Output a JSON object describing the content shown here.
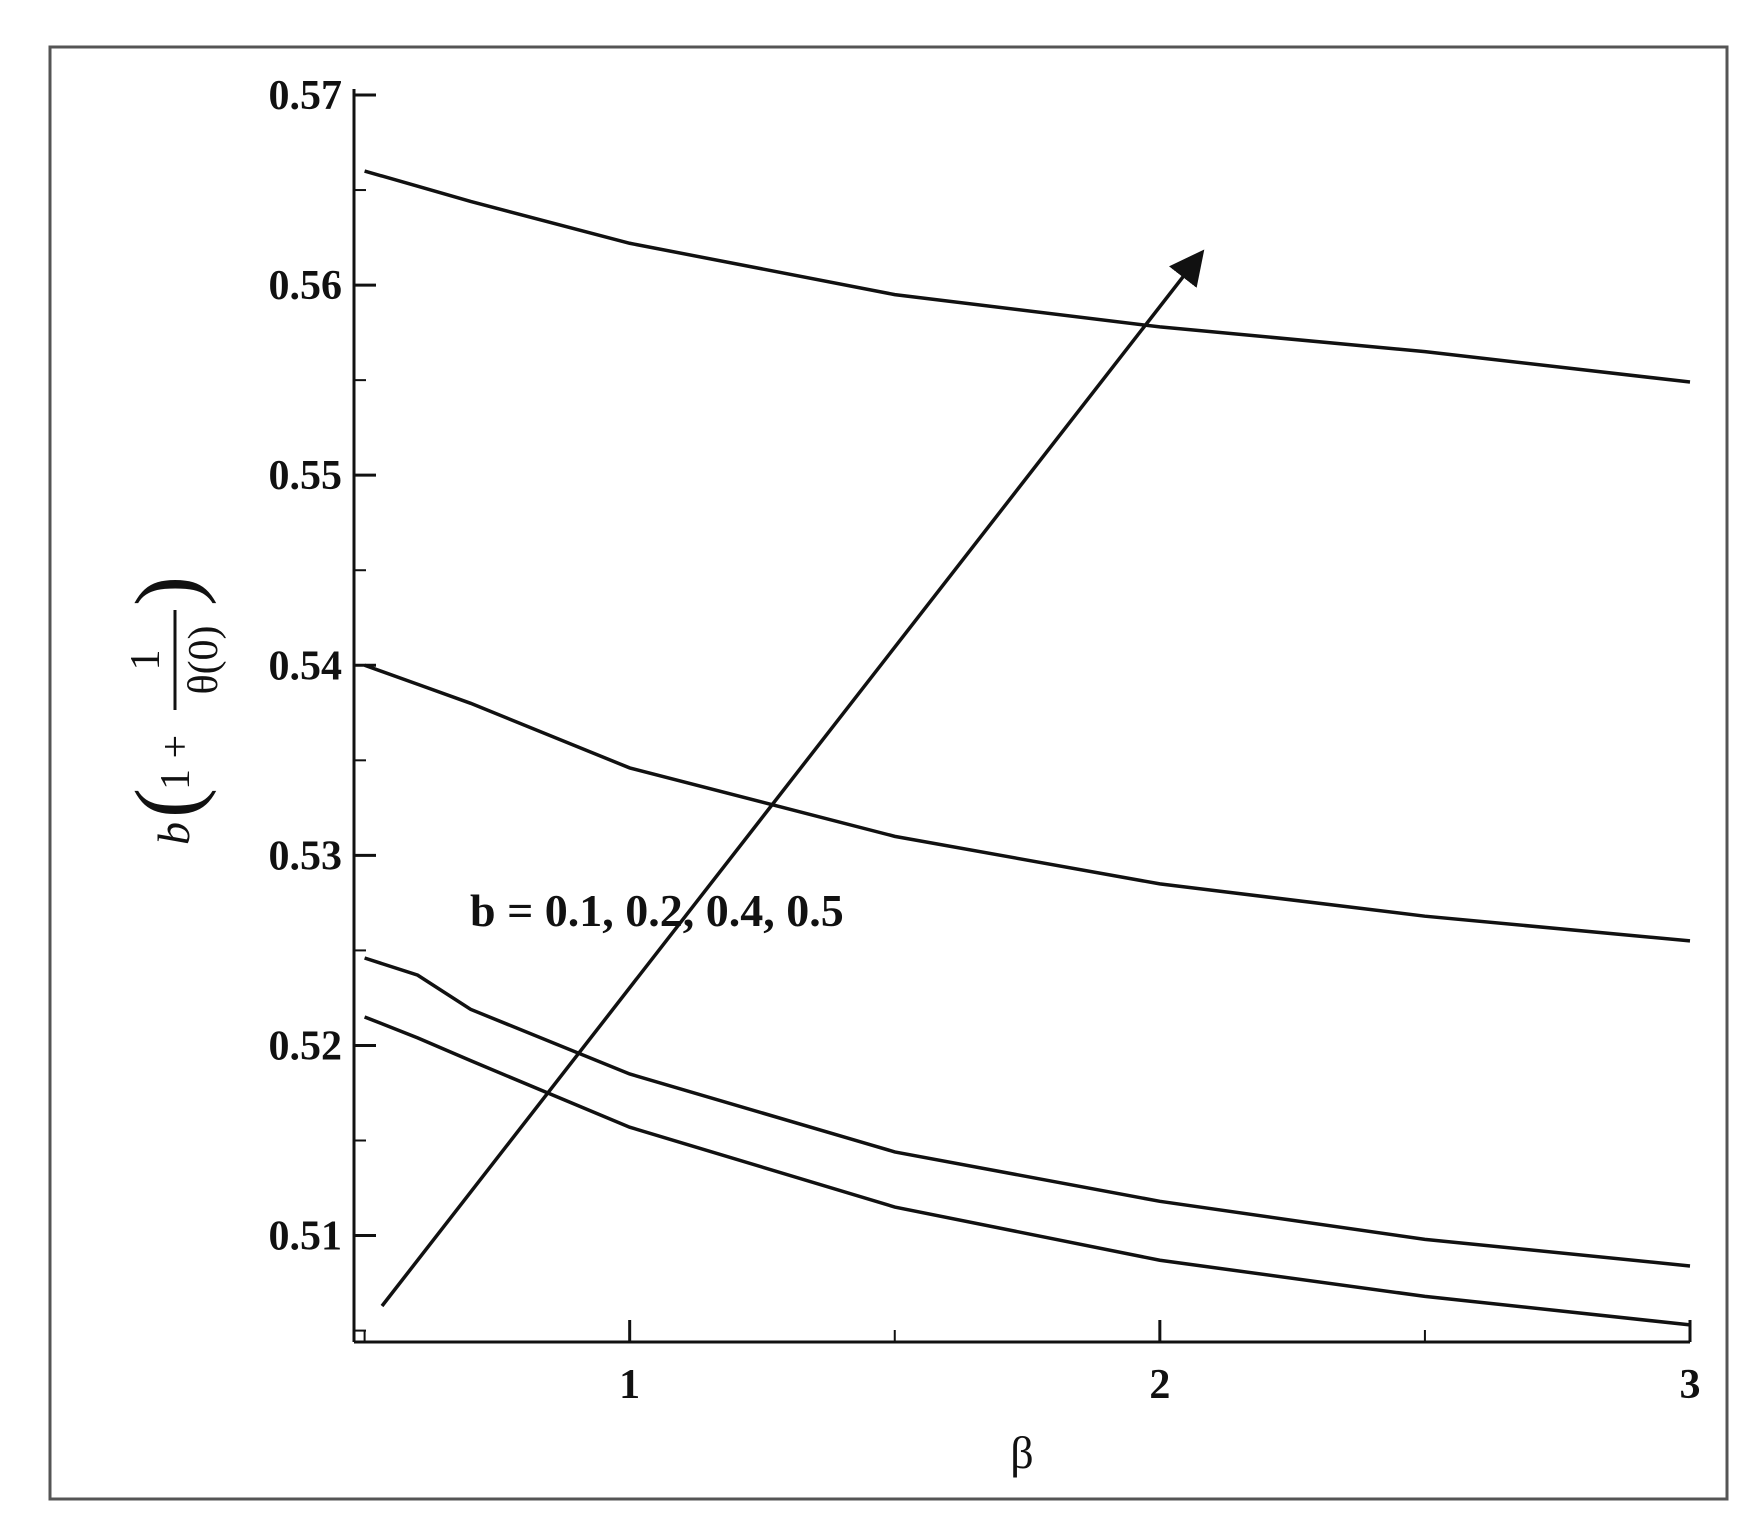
{
  "chart_data": {
    "type": "line",
    "xlabel": "β",
    "ylabel": {
      "prefix": "b",
      "lead": "1 +",
      "numerator": "1",
      "denominator": "θ(0)"
    },
    "annotation": "b = 0.1, 0.2, 0.4, 0.5",
    "x": [
      0.5,
      0.6,
      0.7,
      1,
      1.5,
      2,
      2.5,
      3
    ],
    "series": [
      {
        "color": "#111111",
        "values": [
          0.566,
          0.5652,
          0.5644,
          0.5622,
          0.5595,
          0.5578,
          0.5565,
          0.5549
        ]
      },
      {
        "color": "#111111",
        "values": [
          0.54,
          0.539,
          0.538,
          0.5346,
          0.531,
          0.5285,
          0.5268,
          0.5255
        ]
      },
      {
        "color": "#111111",
        "values": [
          0.5246,
          0.5237,
          0.5219,
          0.5185,
          0.5144,
          0.5118,
          0.5098,
          0.5084
        ]
      },
      {
        "color": "#111111",
        "values": [
          0.5215,
          0.5204,
          0.5192,
          0.5157,
          0.5115,
          0.5087,
          0.5068,
          0.5053
        ]
      }
    ],
    "xlim": [
      0.48,
      3
    ],
    "ylim": [
      0.5044,
      0.57
    ],
    "xticks": [
      1,
      2,
      3
    ],
    "yticks": [
      0.51,
      0.52,
      0.53,
      0.54,
      0.55,
      0.56,
      0.57
    ],
    "xminor_ticks": [
      0.5,
      1.5,
      2.5
    ],
    "yminor_ticks": [
      0.505,
      0.515,
      0.525,
      0.535,
      0.545,
      0.555,
      0.565
    ],
    "grid": false
  }
}
